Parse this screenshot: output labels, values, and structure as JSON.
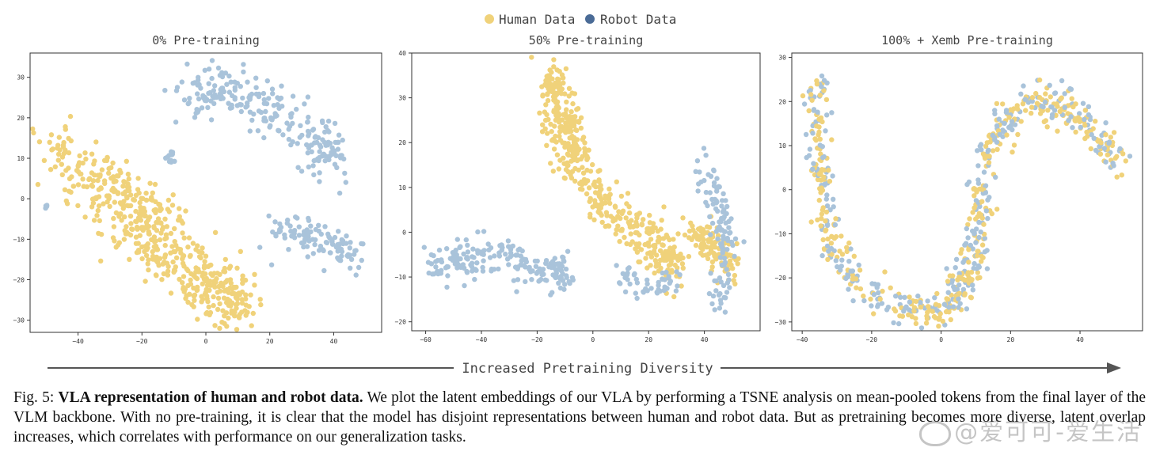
{
  "legend": [
    {
      "label": "Human Data",
      "color": "#f0d27a"
    },
    {
      "label": "Robot Data",
      "color": "#4a6b96"
    }
  ],
  "colors": {
    "human_points": "#f0d27a",
    "robot_points": "#a9c3da",
    "arrow": "#555555",
    "axis": "#333333"
  },
  "arrow_label": "Increased Pretraining Diversity",
  "caption": {
    "prefix": "Fig. 5: ",
    "bold": "VLA representation of human and robot data.",
    "body": " We plot the latent embeddings of our VLA by performing a TSNE analysis on mean-pooled tokens from the final layer of the VLM backbone. With no pre-training, it is clear that the model has disjoint representations between human and robot data. But as pretraining becomes more diverse, latent overlap increases, which correlates with performance on our generalization tasks."
  },
  "watermark": "@爱可可-爱生活",
  "chart_data": [
    {
      "type": "scatter",
      "title": "0% Pre-training",
      "xlim": [
        -55,
        55
      ],
      "ylim": [
        -33,
        36
      ],
      "xticks": [
        -40,
        -20,
        0,
        20,
        40
      ],
      "yticks": [
        -30,
        -20,
        -10,
        0,
        10,
        20,
        30
      ],
      "clusters": [
        {
          "series": "human",
          "n": 470,
          "path": [
            [
              -48,
              13
            ],
            [
              -35,
              5
            ],
            [
              -25,
              -5
            ],
            [
              -15,
              -12
            ],
            [
              -5,
              -18
            ],
            [
              5,
              -24
            ],
            [
              10,
              -26
            ]
          ],
          "spread": 7
        },
        {
          "series": "human",
          "n": 70,
          "path": [
            [
              -30,
              8
            ],
            [
              -20,
              0
            ],
            [
              -8,
              -5
            ]
          ],
          "spread": 5
        },
        {
          "series": "robot",
          "n": 240,
          "path": [
            [
              -8,
              25
            ],
            [
              5,
              27
            ],
            [
              20,
              22
            ],
            [
              35,
              15
            ],
            [
              38,
              10
            ]
          ],
          "spread": 6
        },
        {
          "series": "robot",
          "n": 110,
          "path": [
            [
              22,
              -8
            ],
            [
              35,
              -10
            ],
            [
              48,
              -14
            ]
          ],
          "spread": 4
        },
        {
          "series": "robot",
          "n": 12,
          "path": [
            [
              -10,
              10
            ],
            [
              -12,
              11
            ]
          ],
          "spread": 1.5
        },
        {
          "series": "robot",
          "n": 4,
          "path": [
            [
              -50,
              -1
            ],
            [
              -50,
              -3
            ]
          ],
          "spread": 0.5
        }
      ]
    },
    {
      "type": "scatter",
      "title": "50% Pre-training",
      "xlim": [
        -65,
        60
      ],
      "ylim": [
        -22,
        40
      ],
      "xticks": [
        -60,
        -40,
        -20,
        0,
        20,
        40
      ],
      "yticks": [
        -20,
        -10,
        0,
        10,
        20,
        30,
        40
      ],
      "clusters": [
        {
          "series": "human",
          "n": 460,
          "path": [
            [
              -15,
              35
            ],
            [
              -12,
              25
            ],
            [
              -5,
              15
            ],
            [
              5,
              5
            ],
            [
              20,
              -2
            ],
            [
              30,
              -8
            ]
          ],
          "spread": 5
        },
        {
          "series": "human",
          "n": 110,
          "path": [
            [
              35,
              0
            ],
            [
              45,
              -3
            ],
            [
              50,
              -8
            ]
          ],
          "spread": 4
        },
        {
          "series": "robot",
          "n": 200,
          "path": [
            [
              -58,
              -7
            ],
            [
              -45,
              -6
            ],
            [
              -30,
              -5
            ],
            [
              -15,
              -10
            ],
            [
              -10,
              -8
            ]
          ],
          "spread": 4
        },
        {
          "series": "robot",
          "n": 110,
          "path": [
            [
              40,
              14
            ],
            [
              45,
              5
            ],
            [
              48,
              -5
            ],
            [
              44,
              -15
            ]
          ],
          "spread": 3.5
        },
        {
          "series": "robot",
          "n": 50,
          "path": [
            [
              10,
              -10
            ],
            [
              20,
              -12
            ],
            [
              30,
              -12
            ]
          ],
          "spread": 3
        }
      ]
    },
    {
      "type": "scatter",
      "title": "100% + Xemb Pre-training",
      "xlim": [
        -43,
        58
      ],
      "ylim": [
        -32,
        31
      ],
      "xticks": [
        -40,
        -20,
        0,
        20,
        40
      ],
      "yticks": [
        -30,
        -20,
        -10,
        0,
        10,
        20,
        30
      ],
      "clusters": [
        {
          "series": "mixed",
          "n": 700,
          "path": [
            [
              -35,
              24
            ],
            [
              -36,
              12
            ],
            [
              -34,
              0
            ],
            [
              -32,
              -12
            ],
            [
              -24,
              -22
            ],
            [
              -10,
              -27
            ],
            [
              0,
              -28
            ],
            [
              6,
              -22
            ],
            [
              10,
              -12
            ],
            [
              12,
              0
            ],
            [
              14,
              10
            ],
            [
              18,
              16
            ],
            [
              26,
              20
            ],
            [
              36,
              19
            ],
            [
              46,
              12
            ],
            [
              52,
              6
            ]
          ],
          "spread": 3.5
        }
      ]
    }
  ]
}
